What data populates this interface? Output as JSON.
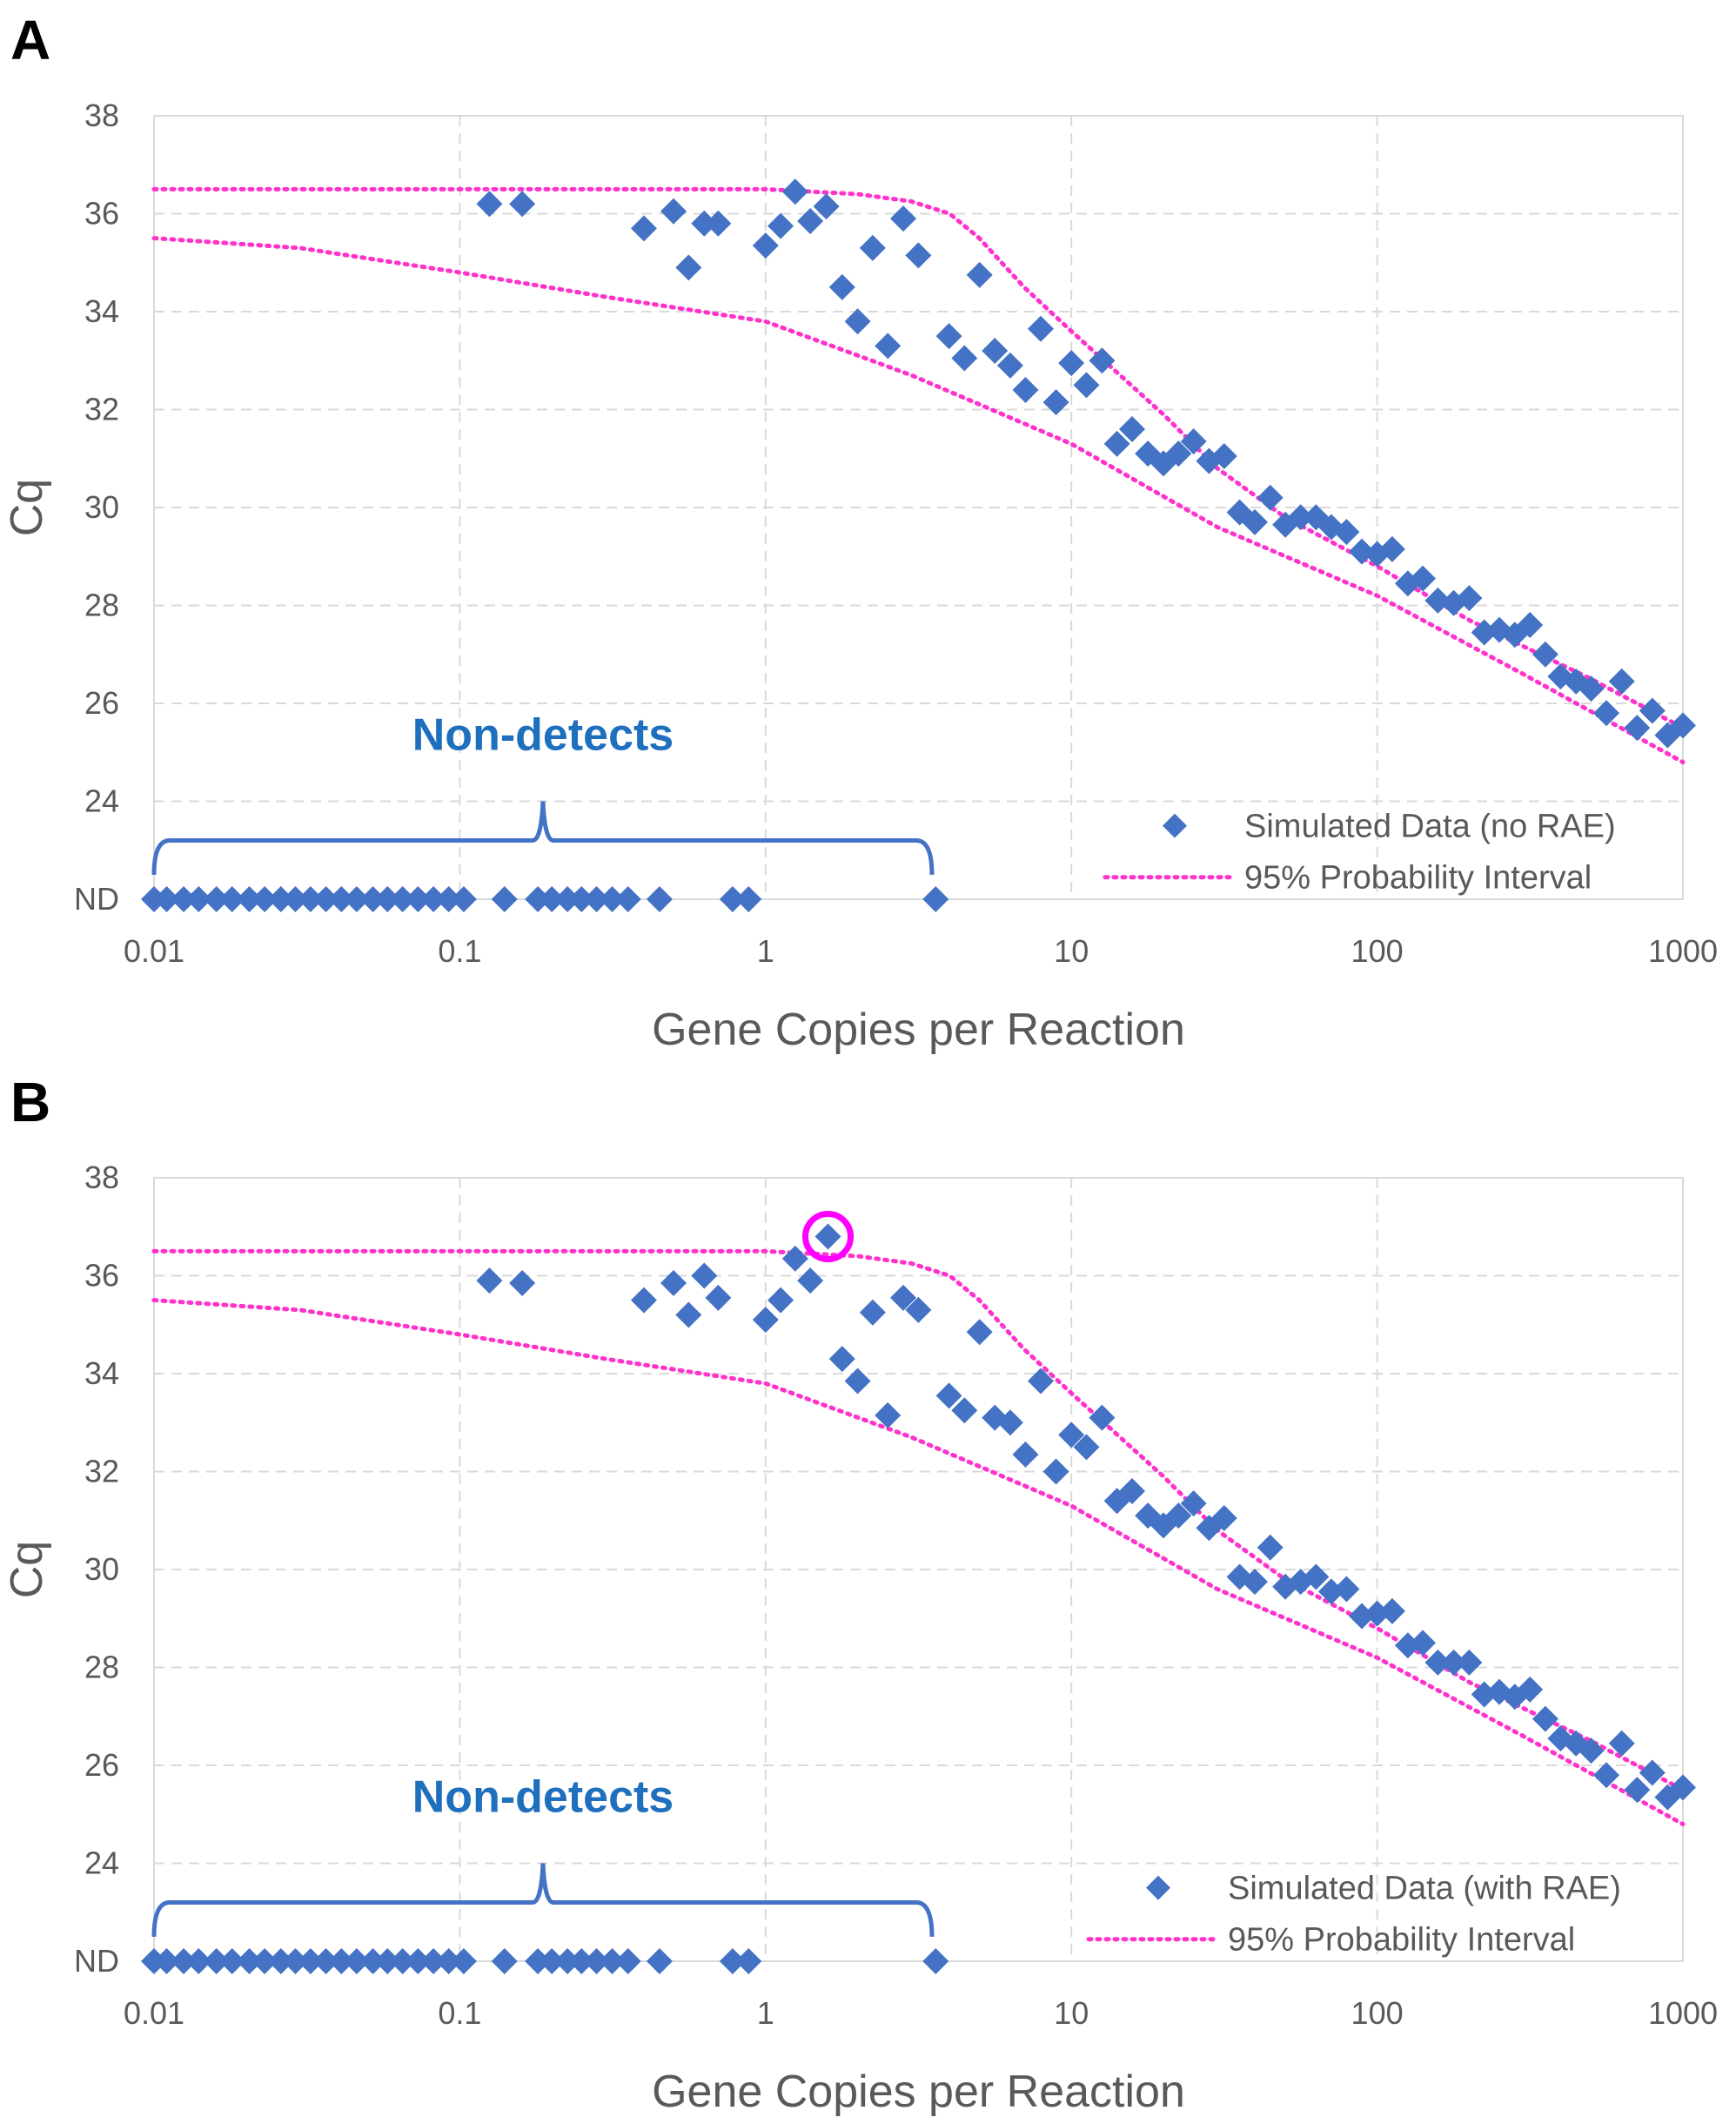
{
  "chart_data": [
    {
      "panel": "A",
      "type": "scatter",
      "xlabel": "Gene Copies per Reaction",
      "ylabel": "Cq",
      "xscale": "log",
      "xlim": [
        0.01,
        1000
      ],
      "ylim": [
        22,
        38
      ],
      "xticks": [
        "0.01",
        "0.1",
        "1",
        "10",
        "100",
        "1000"
      ],
      "yticks": [
        "ND",
        "24",
        "26",
        "28",
        "30",
        "32",
        "34",
        "36",
        "38"
      ],
      "nd_value": 22,
      "annotation": "Non-detects",
      "bracket_range": [
        0.01,
        3.5
      ],
      "highlight": null,
      "legend": {
        "placement": "bottom-right",
        "entries": [
          "Simulated Data (no RAE)",
          "95% Probability Interval"
        ]
      },
      "series": [
        {
          "name": "Simulated Data (no RAE)",
          "color": "#4472c4",
          "marker": "diamond",
          "points": [
            [
              0.01,
              22
            ],
            [
              0.011,
              22
            ],
            [
              0.0125,
              22
            ],
            [
              0.014,
              22
            ],
            [
              0.016,
              22
            ],
            [
              0.018,
              22
            ],
            [
              0.0205,
              22
            ],
            [
              0.023,
              22
            ],
            [
              0.026,
              22
            ],
            [
              0.029,
              22
            ],
            [
              0.0325,
              22
            ],
            [
              0.0365,
              22
            ],
            [
              0.041,
              22
            ],
            [
              0.046,
              22
            ],
            [
              0.052,
              22
            ],
            [
              0.058,
              22
            ],
            [
              0.065,
              22
            ],
            [
              0.073,
              22
            ],
            [
              0.082,
              22
            ],
            [
              0.092,
              22
            ],
            [
              0.103,
              22
            ],
            [
              0.14,
              22
            ],
            [
              0.18,
              22
            ],
            [
              0.2,
              22
            ],
            [
              0.225,
              22
            ],
            [
              0.25,
              22
            ],
            [
              0.28,
              22
            ],
            [
              0.315,
              22
            ],
            [
              0.355,
              22
            ],
            [
              0.45,
              22
            ],
            [
              0.78,
              22
            ],
            [
              0.88,
              22
            ],
            [
              3.6,
              22
            ],
            [
              0.125,
              36.2
            ],
            [
              0.16,
              36.2
            ],
            [
              0.4,
              35.7
            ],
            [
              0.5,
              36.05
            ],
            [
              0.56,
              34.9
            ],
            [
              0.63,
              35.8
            ],
            [
              0.7,
              35.8
            ],
            [
              1.0,
              35.35
            ],
            [
              1.12,
              35.75
            ],
            [
              1.25,
              36.45
            ],
            [
              1.4,
              35.85
            ],
            [
              1.58,
              36.15
            ],
            [
              1.78,
              34.5
            ],
            [
              2.0,
              33.8
            ],
            [
              2.24,
              35.3
            ],
            [
              2.51,
              33.3
            ],
            [
              2.82,
              35.9
            ],
            [
              3.16,
              35.15
            ],
            [
              3.98,
              33.5
            ],
            [
              4.47,
              33.05
            ],
            [
              5.01,
              34.75
            ],
            [
              5.62,
              33.2
            ],
            [
              6.31,
              32.9
            ],
            [
              7.08,
              32.4
            ],
            [
              7.94,
              33.65
            ],
            [
              8.91,
              32.15
            ],
            [
              10,
              32.95
            ],
            [
              11.2,
              32.5
            ],
            [
              12.6,
              33.0
            ],
            [
              14.1,
              31.3
            ],
            [
              15.8,
              31.6
            ],
            [
              17.8,
              31.1
            ],
            [
              20.0,
              30.9
            ],
            [
              22.4,
              31.1
            ],
            [
              25.1,
              31.35
            ],
            [
              28.2,
              30.95
            ],
            [
              31.6,
              31.05
            ],
            [
              35.5,
              29.9
            ],
            [
              39.8,
              29.7
            ],
            [
              44.7,
              30.2
            ],
            [
              50.1,
              29.65
            ],
            [
              56.2,
              29.8
            ],
            [
              63.1,
              29.8
            ],
            [
              70.8,
              29.6
            ],
            [
              79.4,
              29.5
            ],
            [
              89.1,
              29.1
            ],
            [
              100,
              29.05
            ],
            [
              112,
              29.15
            ],
            [
              126,
              28.45
            ],
            [
              141,
              28.55
            ],
            [
              158,
              28.1
            ],
            [
              178,
              28.05
            ],
            [
              200,
              28.15
            ],
            [
              224,
              27.45
            ],
            [
              251,
              27.5
            ],
            [
              282,
              27.4
            ],
            [
              316,
              27.6
            ],
            [
              355,
              27.0
            ],
            [
              398,
              26.55
            ],
            [
              447,
              26.45
            ],
            [
              501,
              26.3
            ],
            [
              562,
              25.8
            ],
            [
              631,
              26.45
            ],
            [
              708,
              25.5
            ],
            [
              794,
              25.85
            ],
            [
              891,
              25.35
            ],
            [
              1000,
              25.55
            ]
          ]
        }
      ],
      "interval": {
        "name": "95% Probability Interval",
        "color": "#ff33cc",
        "upper": [
          [
            0.01,
            36.5
          ],
          [
            0.1,
            36.5
          ],
          [
            1,
            36.5
          ],
          [
            2,
            36.4
          ],
          [
            3,
            36.25
          ],
          [
            4,
            36.0
          ],
          [
            5,
            35.5
          ],
          [
            7,
            34.5
          ],
          [
            10,
            33.6
          ],
          [
            20,
            31.9
          ],
          [
            30,
            30.8
          ],
          [
            50,
            29.8
          ],
          [
            100,
            28.8
          ],
          [
            200,
            27.7
          ],
          [
            500,
            26.5
          ],
          [
            1000,
            25.5
          ]
        ],
        "lower": [
          [
            0.01,
            35.5
          ],
          [
            0.03,
            35.3
          ],
          [
            0.1,
            34.8
          ],
          [
            0.3,
            34.3
          ],
          [
            1,
            33.8
          ],
          [
            3,
            32.7
          ],
          [
            10,
            31.3
          ],
          [
            30,
            29.6
          ],
          [
            100,
            28.2
          ],
          [
            300,
            26.6
          ],
          [
            1000,
            24.8
          ]
        ]
      }
    },
    {
      "panel": "B",
      "type": "scatter",
      "xlabel": "Gene Copies per Reaction",
      "ylabel": "Cq",
      "xscale": "log",
      "xlim": [
        0.01,
        1000
      ],
      "ylim": [
        22,
        38
      ],
      "xticks": [
        "0.01",
        "0.1",
        "1",
        "10",
        "100",
        "1000"
      ],
      "yticks": [
        "ND",
        "24",
        "26",
        "28",
        "30",
        "32",
        "34",
        "36",
        "38"
      ],
      "nd_value": 22,
      "annotation": "Non-detects",
      "bracket_range": [
        0.01,
        3.5
      ],
      "highlight": [
        1.6,
        36.8
      ],
      "legend": {
        "placement": "bottom-right",
        "entries": [
          "Simulated Data (with RAE)",
          "95% Probability Interval"
        ]
      },
      "series": [
        {
          "name": "Simulated Data (with RAE)",
          "color": "#4472c4",
          "marker": "diamond",
          "points": [
            [
              0.01,
              22
            ],
            [
              0.011,
              22
            ],
            [
              0.0125,
              22
            ],
            [
              0.014,
              22
            ],
            [
              0.016,
              22
            ],
            [
              0.018,
              22
            ],
            [
              0.0205,
              22
            ],
            [
              0.023,
              22
            ],
            [
              0.026,
              22
            ],
            [
              0.029,
              22
            ],
            [
              0.0325,
              22
            ],
            [
              0.0365,
              22
            ],
            [
              0.041,
              22
            ],
            [
              0.046,
              22
            ],
            [
              0.052,
              22
            ],
            [
              0.058,
              22
            ],
            [
              0.065,
              22
            ],
            [
              0.073,
              22
            ],
            [
              0.082,
              22
            ],
            [
              0.092,
              22
            ],
            [
              0.103,
              22
            ],
            [
              0.14,
              22
            ],
            [
              0.18,
              22
            ],
            [
              0.2,
              22
            ],
            [
              0.225,
              22
            ],
            [
              0.25,
              22
            ],
            [
              0.28,
              22
            ],
            [
              0.315,
              22
            ],
            [
              0.355,
              22
            ],
            [
              0.45,
              22
            ],
            [
              0.78,
              22
            ],
            [
              0.88,
              22
            ],
            [
              3.6,
              22
            ],
            [
              0.125,
              35.9
            ],
            [
              0.16,
              35.85
            ],
            [
              0.4,
              35.5
            ],
            [
              0.5,
              35.85
            ],
            [
              0.56,
              35.2
            ],
            [
              0.63,
              36.0
            ],
            [
              0.7,
              35.55
            ],
            [
              1.0,
              35.1
            ],
            [
              1.12,
              35.5
            ],
            [
              1.25,
              36.35
            ],
            [
              1.4,
              35.9
            ],
            [
              1.6,
              36.8
            ],
            [
              1.78,
              34.3
            ],
            [
              2.0,
              33.85
            ],
            [
              2.24,
              35.25
            ],
            [
              2.51,
              33.15
            ],
            [
              2.82,
              35.55
            ],
            [
              3.16,
              35.3
            ],
            [
              3.98,
              33.55
            ],
            [
              4.47,
              33.25
            ],
            [
              5.01,
              34.85
            ],
            [
              5.62,
              33.1
            ],
            [
              6.31,
              33.0
            ],
            [
              7.08,
              32.35
            ],
            [
              7.94,
              33.85
            ],
            [
              8.91,
              32.0
            ],
            [
              10,
              32.75
            ],
            [
              11.2,
              32.5
            ],
            [
              12.6,
              33.1
            ],
            [
              14.1,
              31.4
            ],
            [
              15.8,
              31.6
            ],
            [
              17.8,
              31.1
            ],
            [
              20.0,
              30.9
            ],
            [
              22.4,
              31.1
            ],
            [
              25.1,
              31.35
            ],
            [
              28.2,
              30.85
            ],
            [
              31.6,
              31.05
            ],
            [
              35.5,
              29.85
            ],
            [
              39.8,
              29.75
            ],
            [
              44.7,
              30.45
            ],
            [
              50.1,
              29.65
            ],
            [
              56.2,
              29.75
            ],
            [
              63.1,
              29.85
            ],
            [
              70.8,
              29.55
            ],
            [
              79.4,
              29.6
            ],
            [
              89.1,
              29.05
            ],
            [
              100,
              29.1
            ],
            [
              112,
              29.15
            ],
            [
              126,
              28.45
            ],
            [
              141,
              28.5
            ],
            [
              158,
              28.1
            ],
            [
              178,
              28.1
            ],
            [
              200,
              28.1
            ],
            [
              224,
              27.45
            ],
            [
              251,
              27.5
            ],
            [
              282,
              27.4
            ],
            [
              316,
              27.55
            ],
            [
              355,
              26.95
            ],
            [
              398,
              26.55
            ],
            [
              447,
              26.45
            ],
            [
              501,
              26.3
            ],
            [
              562,
              25.8
            ],
            [
              631,
              26.45
            ],
            [
              708,
              25.5
            ],
            [
              794,
              25.85
            ],
            [
              891,
              25.35
            ],
            [
              1000,
              25.55
            ]
          ]
        }
      ],
      "interval": {
        "name": "95% Probability Interval",
        "color": "#ff33cc",
        "upper": [
          [
            0.01,
            36.5
          ],
          [
            0.1,
            36.5
          ],
          [
            1,
            36.5
          ],
          [
            2,
            36.4
          ],
          [
            3,
            36.25
          ],
          [
            4,
            36.0
          ],
          [
            5,
            35.5
          ],
          [
            7,
            34.5
          ],
          [
            10,
            33.6
          ],
          [
            20,
            31.9
          ],
          [
            30,
            30.8
          ],
          [
            50,
            29.8
          ],
          [
            100,
            28.8
          ],
          [
            200,
            27.7
          ],
          [
            500,
            26.5
          ],
          [
            1000,
            25.5
          ]
        ],
        "lower": [
          [
            0.01,
            35.5
          ],
          [
            0.03,
            35.3
          ],
          [
            0.1,
            34.8
          ],
          [
            0.3,
            34.3
          ],
          [
            1,
            33.8
          ],
          [
            3,
            32.7
          ],
          [
            10,
            31.3
          ],
          [
            30,
            29.6
          ],
          [
            100,
            28.2
          ],
          [
            300,
            26.6
          ],
          [
            1000,
            24.8
          ]
        ]
      }
    }
  ],
  "panels": [
    {
      "letter": "A"
    },
    {
      "letter": "B"
    }
  ],
  "colors": {
    "marker": "#4472c4",
    "interval": "#ff33cc",
    "bracket": "#4472c4",
    "annotation": "#1f6fbf",
    "highlight": "#ff00ff",
    "grid": "#d9d9d9"
  }
}
